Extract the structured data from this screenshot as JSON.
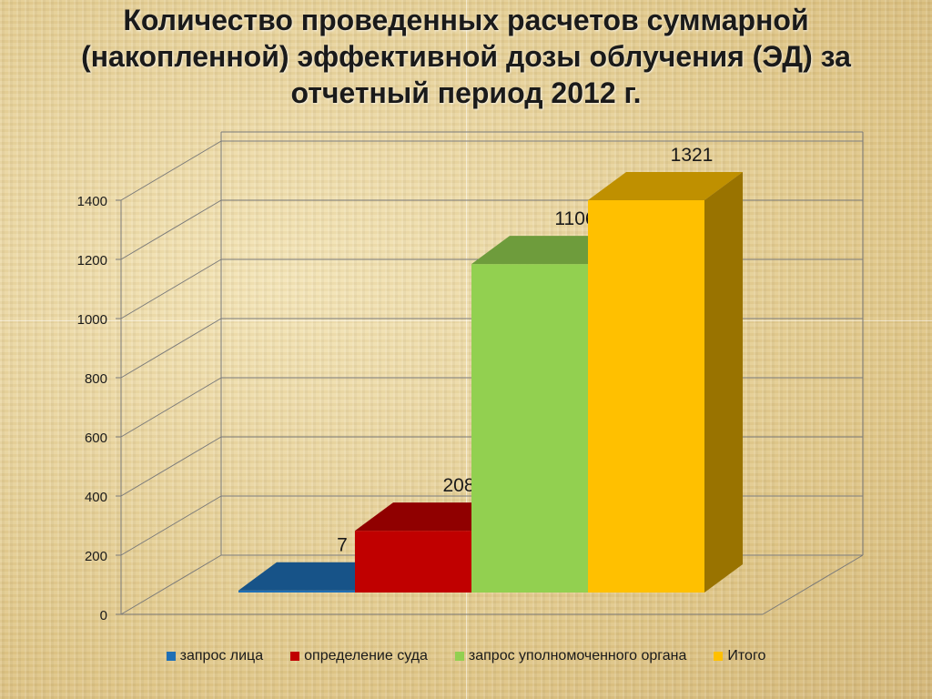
{
  "title": {
    "line1": "Количество проведенных расчетов суммарной",
    "line2": "(накопленной) эффективной дозы облучения (ЭД) за",
    "line3": "отчетный период 2012 г."
  },
  "chart_data": {
    "type": "bar",
    "categories": [
      "запрос лица",
      "определение суда",
      "запрос уполномоченного органа",
      "Итого"
    ],
    "values": [
      7,
      208,
      1106,
      1321
    ],
    "data_labels": [
      "7",
      "208",
      "1106",
      "1321"
    ],
    "ylim": [
      0,
      1400
    ],
    "yticks": [
      0,
      200,
      400,
      600,
      800,
      1000,
      1200,
      1400
    ],
    "ytick_labels": [
      "0",
      "200",
      "400",
      "600",
      "800",
      "1000",
      "1200",
      "1400"
    ],
    "colors": [
      "#1f6fb5",
      "#c00000",
      "#92d050",
      "#ffc000"
    ],
    "grid": true,
    "style": "3d-column",
    "legend_position": "bottom"
  }
}
